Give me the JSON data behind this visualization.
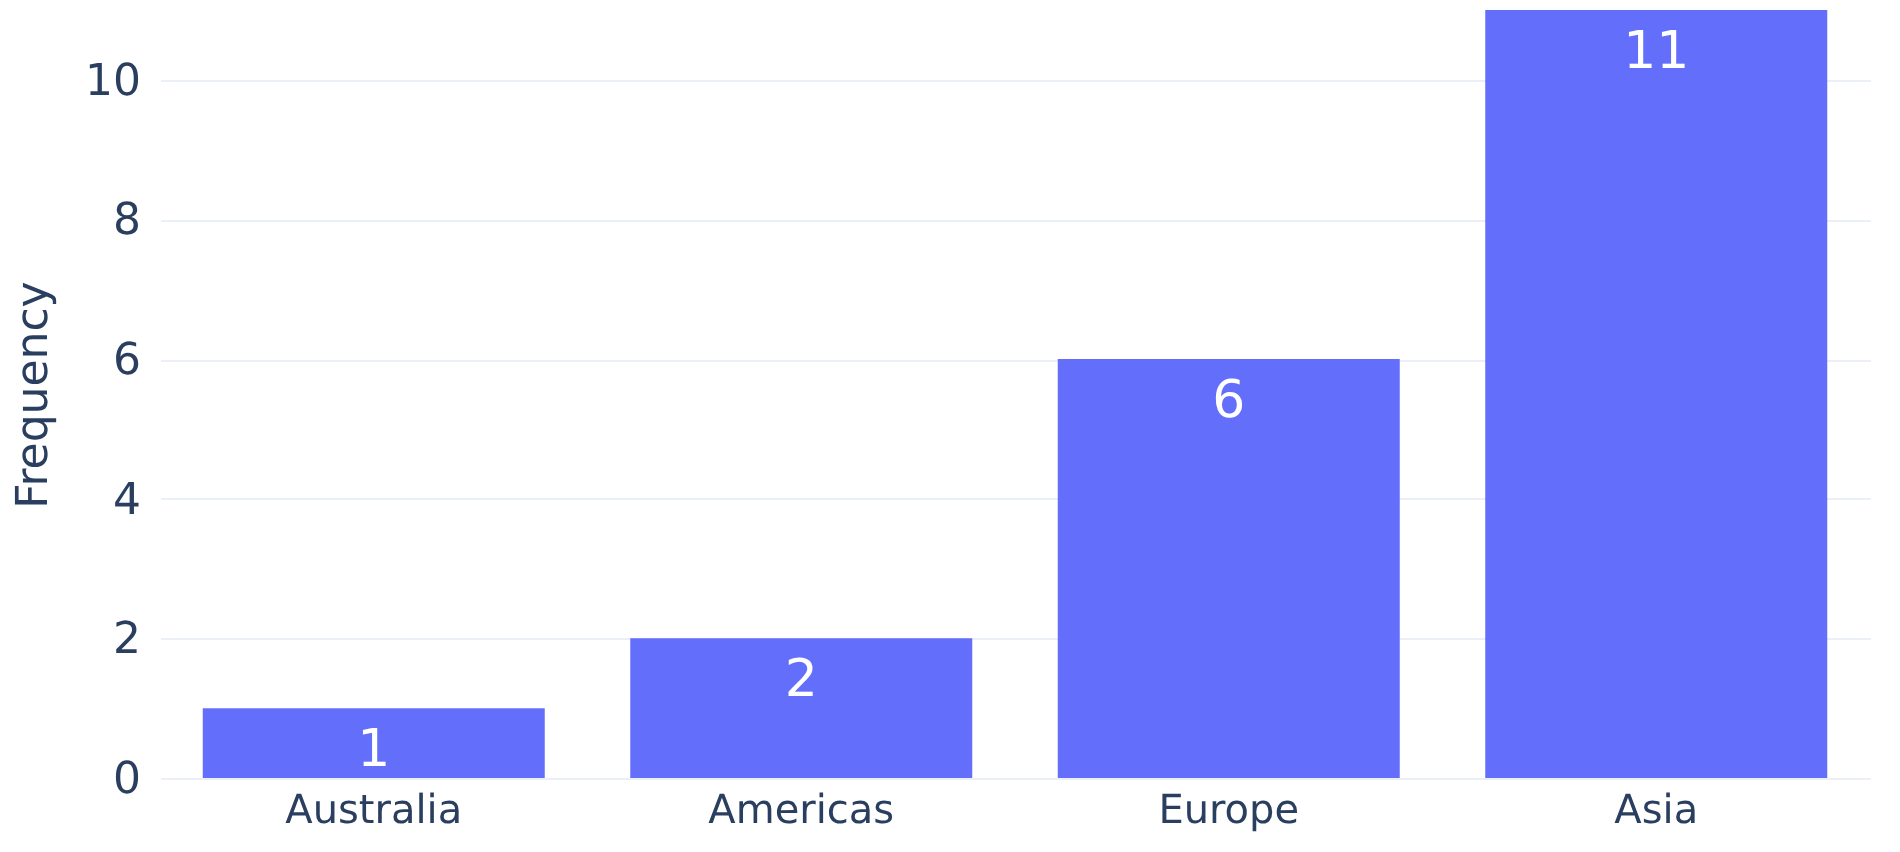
{
  "chart_data": {
    "type": "bar",
    "ylabel": "Frequency",
    "categories": [
      "Australia",
      "Americas",
      "Europe",
      "Asia"
    ],
    "values": [
      1,
      2,
      6,
      11
    ],
    "color": "#636efa",
    "ylim": [
      0,
      11
    ],
    "yticks": [
      0,
      2,
      4,
      6,
      8,
      10
    ],
    "grid": "y",
    "data_labels": true
  }
}
